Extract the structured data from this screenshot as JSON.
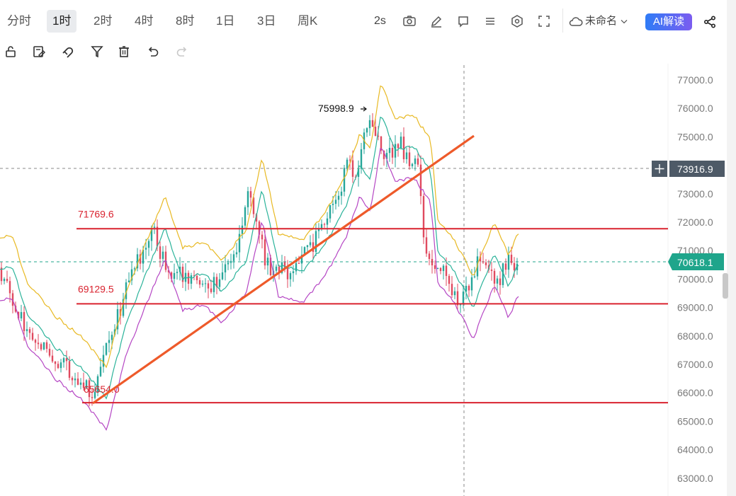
{
  "toolbar": {
    "timeframes": [
      "分时",
      "1时",
      "2时",
      "4时",
      "8时",
      "1日",
      "3日",
      "周K"
    ],
    "active_timeframe": "1时",
    "refresh": "2s",
    "layout_name": "未命名",
    "ai_label": "AI解读",
    "icons": [
      "camera-icon",
      "pen-icon",
      "reply-icon",
      "list-icon",
      "settings-icon",
      "fullscreen-icon",
      "cloud-icon",
      "chevron-down-icon",
      "share-icon"
    ]
  },
  "drawing_tools": {
    "icons": [
      "unlock-icon",
      "edit-icon",
      "magnet-icon",
      "filter-icon",
      "trash-icon",
      "undo-icon",
      "redo-icon"
    ]
  },
  "chart_data": {
    "type": "candlestick",
    "y_axis": {
      "ylim": [
        62700,
        77300
      ],
      "ticks": [
        "77000.0",
        "76000.0",
        "75000.0",
        "74000.0",
        "73000.0",
        "72000.0",
        "71000.0",
        "70000.0",
        "69000.0",
        "68000.0",
        "67000.0",
        "66000.0",
        "65000.0",
        "64000.0",
        "63000.0"
      ]
    },
    "crosshair_price": "73916.9",
    "current_price": "70618.1",
    "high_annotation": "75998.9",
    "horizontal_levels": [
      {
        "label": "71769.6",
        "value": 71769.6
      },
      {
        "label": "69129.5",
        "value": 69129.5
      },
      {
        "label": "65654.0",
        "value": 65654.0
      }
    ],
    "colors": {
      "up": "#26a69a",
      "down": "#e04a5f",
      "level": "#d9232f",
      "trendline": "#ee5a2a",
      "upper_band": "#e8b923",
      "lower_band": "#b546c4",
      "ma": "#2bb39a",
      "price_tag": "#1fa58b",
      "crosshair_tag": "#4e5a67"
    }
  }
}
